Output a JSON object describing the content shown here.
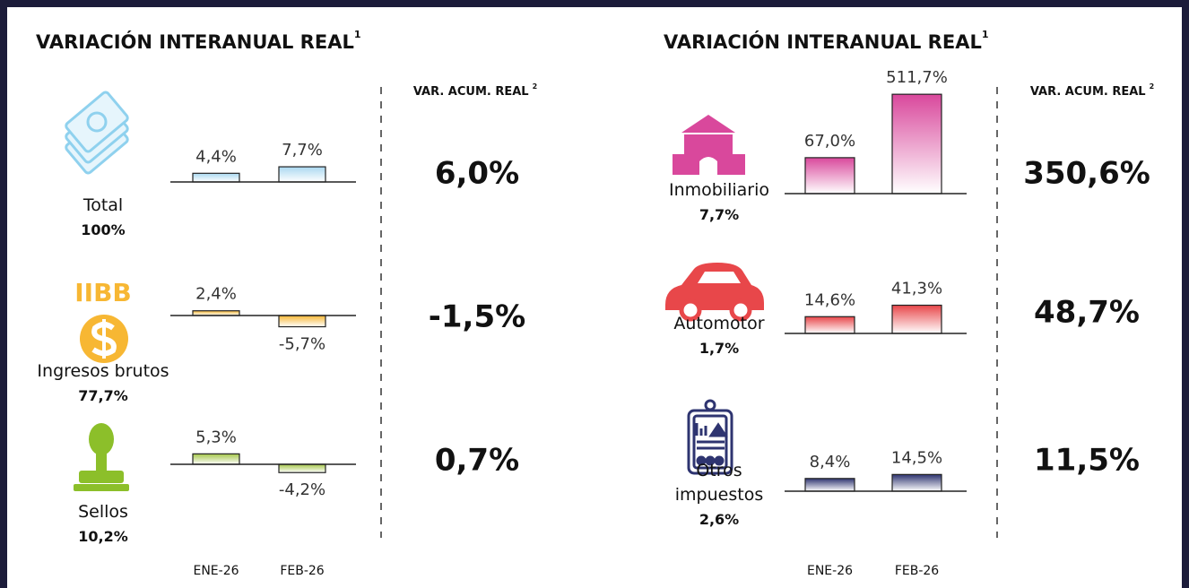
{
  "panels": [
    {
      "title": "VARIACIÓN INTERANUAL REAL",
      "title_sup": "1",
      "acum_header": "VAR. ACUM. REAL",
      "acum_sup": "2",
      "categories": [
        "ENE-26",
        "FEB-26"
      ],
      "rows": [
        {
          "name": "Total",
          "share": "100%",
          "color": "#a9d8f0",
          "values": [
            4.4,
            7.7
          ],
          "value_labels": [
            "4,4%",
            "7,7%"
          ],
          "acum": "6,0%"
        },
        {
          "name": "Ingresos brutos",
          "share": "77,7%",
          "icon_text": "IIBB",
          "color": "#f7b733",
          "values": [
            2.4,
            -5.7
          ],
          "value_labels": [
            "2,4%",
            "-5,7%"
          ],
          "acum": "-1,5%"
        },
        {
          "name": "Sellos",
          "share": "10,2%",
          "color": "#a5c64a",
          "values": [
            5.3,
            -4.2
          ],
          "value_labels": [
            "5,3%",
            "-4,2%"
          ],
          "acum": "0,7%"
        }
      ]
    },
    {
      "title": "VARIACIÓN INTERANUAL REAL",
      "title_sup": "1",
      "acum_header": "VAR. ACUM. REAL",
      "acum_sup": "2",
      "categories": [
        "ENE-26",
        "FEB-26"
      ],
      "rows": [
        {
          "name": "Inmobiliario",
          "share": "7,7%",
          "color": "#d9489c",
          "values": [
            67.0,
            511.7
          ],
          "value_labels": [
            "67,0%",
            "511,7%"
          ],
          "acum": "350,6%"
        },
        {
          "name": "Automotor",
          "share": "1,7%",
          "color": "#e8474a",
          "values": [
            14.6,
            41.3
          ],
          "value_labels": [
            "14,6%",
            "41,3%"
          ],
          "acum": "48,7%"
        },
        {
          "name": "Otros impuestos",
          "share": "2,6%",
          "color": "#2e3470",
          "values": [
            8.4,
            14.5
          ],
          "value_labels": [
            "8,4%",
            "14,5%"
          ],
          "acum": "11,5%"
        }
      ]
    }
  ]
}
